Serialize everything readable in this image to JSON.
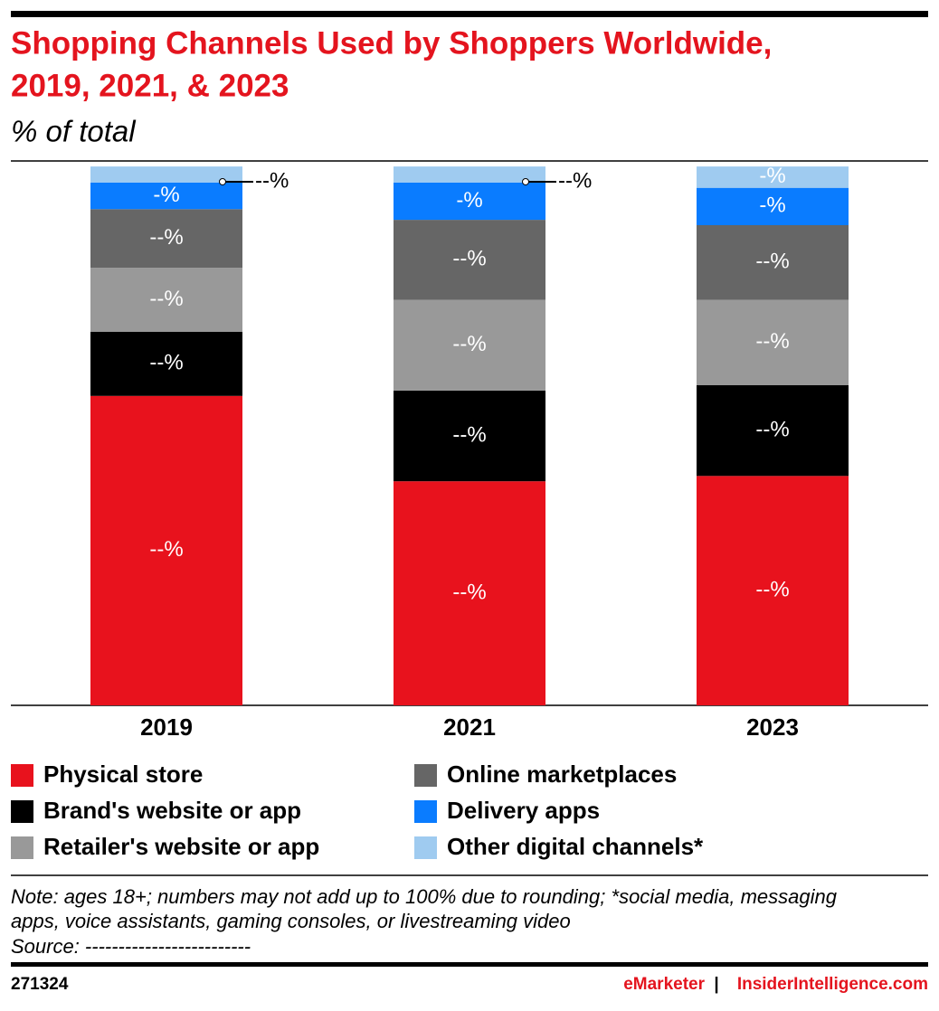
{
  "chart_data": {
    "type": "stacked-bar",
    "title": [
      "Shopping Channels Used by Shoppers Worldwide,",
      "2019, 2021, & 2023"
    ],
    "subtitle": "% of total",
    "categories": [
      "2019",
      "2021",
      "2023"
    ],
    "ylim": [
      0,
      100
    ],
    "series": [
      {
        "name": "Physical store",
        "color": "#e8121d",
        "values": [
          58,
          42,
          43
        ],
        "value_labels": [
          "--%",
          "--%",
          "--%"
        ]
      },
      {
        "name": "Brand's website or app",
        "color": "#000000",
        "values": [
          12,
          17,
          17
        ],
        "value_labels": [
          "--%",
          "--%",
          "--%"
        ]
      },
      {
        "name": "Retailer's website or app",
        "color": "#999999",
        "values": [
          12,
          17,
          16
        ],
        "value_labels": [
          "--%",
          "--%",
          "--%"
        ]
      },
      {
        "name": "Online marketplaces",
        "color": "#666666",
        "values": [
          11,
          15,
          14
        ],
        "value_labels": [
          "--%",
          "--%",
          "--%"
        ]
      },
      {
        "name": "Delivery apps",
        "color": "#0a7cff",
        "values": [
          5,
          7,
          7
        ],
        "value_labels": [
          "-%",
          "-%",
          "-%"
        ]
      },
      {
        "name": "Other digital channels*",
        "color": "#9fcbf0",
        "values": [
          3,
          3,
          4
        ],
        "value_labels": [
          "--%",
          "--%",
          "-%"
        ]
      }
    ]
  },
  "footer": {
    "note": [
      "Note: ages 18+; numbers may not add up to 100% due to rounding; *social media, messaging",
      "apps, voice assistants, gaming consoles, or livestreaming video"
    ],
    "source": "Source: -------------------------",
    "chart_id": "271324",
    "brand": "eMarketer",
    "separator": "|",
    "site": "InsiderIntelligence.com"
  }
}
